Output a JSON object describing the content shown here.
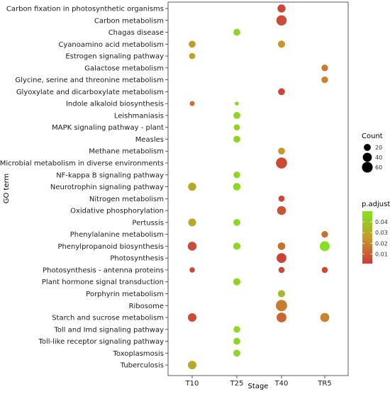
{
  "chart_data": {
    "type": "scatter",
    "xlabel": "Stage",
    "ylabel": "GO term",
    "stages": [
      "T10",
      "T25",
      "T40",
      "TR5"
    ],
    "terms": [
      "Carbon fixation in photosynthetic organisms",
      "Carbon metabolism",
      "Chagas disease",
      "Cyanoamino acid metabolism",
      "Estrogen signaling pathway",
      "Galactose metabolism",
      "Glycine, serine and threonine metabolism",
      "Glyoxylate and dicarboxylate metabolism",
      "Indole alkaloid biosynthesis",
      "Leishmaniasis",
      "MAPK signaling pathway - plant",
      "Measles",
      "Methane metabolism",
      "Microbial metabolism in diverse environments",
      "NF-kappa B signaling pathway",
      "Neurotrophin signaling pathway",
      "Nitrogen metabolism",
      "Oxidative phosphorylation",
      "Pertussis",
      "Phenylalanine metabolism",
      "Phenylpropanoid biosynthesis",
      "Photosynthesis",
      "Photosynthesis - antenna proteins",
      "Plant hormone signal transduction",
      "Porphyrin metabolism",
      "Ribosome",
      "Starch and sucrose metabolism",
      "Toll and Imd signaling pathway",
      "Toll-like receptor signaling pathway",
      "Toxoplasmosis",
      "Tuberculosis"
    ],
    "points": [
      {
        "term": "Carbon fixation in photosynthetic organisms",
        "stage": "T40",
        "count": 30,
        "padj": 0.004
      },
      {
        "term": "Carbon metabolism",
        "stage": "T40",
        "count": 55,
        "padj": 0.006
      },
      {
        "term": "Chagas disease",
        "stage": "T25",
        "count": 20,
        "padj": 0.045
      },
      {
        "term": "Cyanoamino acid metabolism",
        "stage": "T10",
        "count": 20,
        "padj": 0.025
      },
      {
        "term": "Cyanoamino acid metabolism",
        "stage": "T40",
        "count": 22,
        "padj": 0.025
      },
      {
        "term": "Estrogen signaling pathway",
        "stage": "T10",
        "count": 15,
        "padj": 0.028
      },
      {
        "term": "Galactose metabolism",
        "stage": "TR5",
        "count": 18,
        "padj": 0.018
      },
      {
        "term": "Glycine, serine and threonine metabolism",
        "stage": "TR5",
        "count": 18,
        "padj": 0.02
      },
      {
        "term": "Glyoxylate and dicarboxylate metabolism",
        "stage": "T40",
        "count": 20,
        "padj": 0.004
      },
      {
        "term": "Indole alkaloid biosynthesis",
        "stage": "T10",
        "count": 8,
        "padj": 0.015
      },
      {
        "term": "Indole alkaloid biosynthesis",
        "stage": "T25",
        "count": 4,
        "padj": 0.045
      },
      {
        "term": "Leishmaniasis",
        "stage": "T25",
        "count": 20,
        "padj": 0.045
      },
      {
        "term": "MAPK signaling pathway - plant",
        "stage": "T25",
        "count": 15,
        "padj": 0.045
      },
      {
        "term": "Measles",
        "stage": "T25",
        "count": 20,
        "padj": 0.045
      },
      {
        "term": "Methane metabolism",
        "stage": "T40",
        "count": 20,
        "padj": 0.025
      },
      {
        "term": "Microbial metabolism in diverse environments",
        "stage": "T40",
        "count": 65,
        "padj": 0.005
      },
      {
        "term": "NF-kappa B signaling pathway",
        "stage": "T25",
        "count": 18,
        "padj": 0.045
      },
      {
        "term": "Neurotrophin signaling pathway",
        "stage": "T10",
        "count": 30,
        "padj": 0.03
      },
      {
        "term": "Neurotrophin signaling pathway",
        "stage": "T25",
        "count": 25,
        "padj": 0.045
      },
      {
        "term": "Nitrogen metabolism",
        "stage": "T40",
        "count": 15,
        "padj": 0.005
      },
      {
        "term": "Oxidative phosphorylation",
        "stage": "T40",
        "count": 38,
        "padj": 0.008
      },
      {
        "term": "Pertussis",
        "stage": "T10",
        "count": 28,
        "padj": 0.03
      },
      {
        "term": "Pertussis",
        "stage": "T25",
        "count": 20,
        "padj": 0.045
      },
      {
        "term": "Phenylalanine metabolism",
        "stage": "TR5",
        "count": 18,
        "padj": 0.015
      },
      {
        "term": "Phenylpropanoid biosynthesis",
        "stage": "T10",
        "count": 38,
        "padj": 0.006
      },
      {
        "term": "Phenylpropanoid biosynthesis",
        "stage": "T25",
        "count": 22,
        "padj": 0.045
      },
      {
        "term": "Phenylpropanoid biosynthesis",
        "stage": "T40",
        "count": 25,
        "padj": 0.015
      },
      {
        "term": "Phenylpropanoid biosynthesis",
        "stage": "TR5",
        "count": 50,
        "padj": 0.048
      },
      {
        "term": "Photosynthesis",
        "stage": "T40",
        "count": 48,
        "padj": 0.003
      },
      {
        "term": "Photosynthesis - antenna proteins",
        "stage": "T10",
        "count": 10,
        "padj": 0.005
      },
      {
        "term": "Photosynthesis - antenna proteins",
        "stage": "T40",
        "count": 14,
        "padj": 0.005
      },
      {
        "term": "Photosynthesis - antenna proteins",
        "stage": "TR5",
        "count": 14,
        "padj": 0.005
      },
      {
        "term": "Plant hormone signal transduction",
        "stage": "T25",
        "count": 22,
        "padj": 0.045
      },
      {
        "term": "Porphyrin metabolism",
        "stage": "T40",
        "count": 22,
        "padj": 0.035
      },
      {
        "term": "Ribosome",
        "stage": "T40",
        "count": 68,
        "padj": 0.018
      },
      {
        "term": "Starch and sucrose metabolism",
        "stage": "T10",
        "count": 34,
        "padj": 0.006
      },
      {
        "term": "Starch and sucrose metabolism",
        "stage": "T40",
        "count": 48,
        "padj": 0.012
      },
      {
        "term": "Starch and sucrose metabolism",
        "stage": "TR5",
        "count": 40,
        "padj": 0.02
      },
      {
        "term": "Toll and Imd signaling pathway",
        "stage": "T25",
        "count": 18,
        "padj": 0.045
      },
      {
        "term": "Toll-like receptor signaling pathway",
        "stage": "T25",
        "count": 20,
        "padj": 0.045
      },
      {
        "term": "Toxoplasmosis",
        "stage": "T25",
        "count": 20,
        "padj": 0.045
      },
      {
        "term": "Tuberculosis",
        "stage": "T10",
        "count": 34,
        "padj": 0.03
      }
    ],
    "size_legend": {
      "title": "Count",
      "values": [
        20,
        40,
        60
      ]
    },
    "color_legend": {
      "title": "p.adjust",
      "ticks": [
        0.04,
        0.03,
        0.02,
        0.01
      ],
      "tick_labels": [
        "0.04",
        "0.03",
        "0.02",
        "0.01"
      ],
      "range": [
        0.001,
        0.05
      ],
      "low_color": "#cc3a3a",
      "high_color": "#80e620"
    },
    "grid": false,
    "legend_position": "right"
  }
}
